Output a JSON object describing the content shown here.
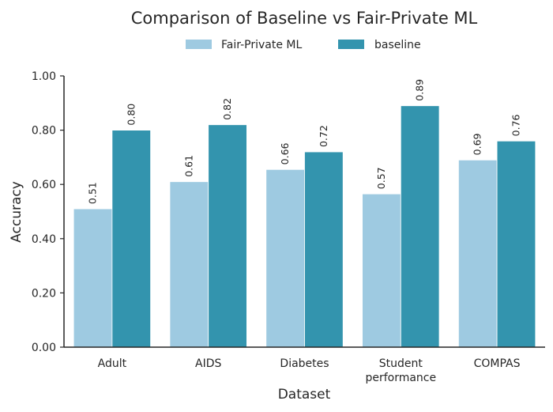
{
  "chart_data": {
    "type": "bar",
    "title": "Comparison of Baseline vs Fair-Private ML",
    "xlabel": "Dataset",
    "ylabel": "Accuracy",
    "ylim": [
      0,
      1.0
    ],
    "yticks": [
      "0.00",
      "0.20",
      "0.40",
      "0.60",
      "0.80",
      "1.00"
    ],
    "categories": [
      [
        "Adult"
      ],
      [
        "AIDS"
      ],
      [
        "Diabetes"
      ],
      [
        "Student",
        "performance"
      ],
      [
        "COMPAS"
      ]
    ],
    "series": [
      {
        "name": "Fair-Private ML",
        "color": "#9ecae1",
        "values": [
          0.51,
          0.61,
          0.655,
          0.565,
          0.69
        ],
        "labels": [
          "0.51",
          "0.61",
          "0.66",
          "0.57",
          "0.69"
        ]
      },
      {
        "name": "baseline",
        "color": "#3394ae",
        "values": [
          0.8,
          0.82,
          0.72,
          0.89,
          0.76
        ],
        "labels": [
          "0.80",
          "0.82",
          "0.72",
          "0.89",
          "0.76"
        ]
      }
    ],
    "legend_position": "top-center",
    "grid": false
  }
}
